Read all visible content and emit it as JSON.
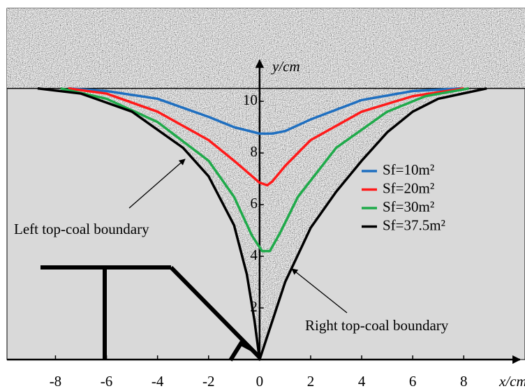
{
  "chart_data": {
    "type": "line",
    "xlabel": "x/cm",
    "ylabel": "y/cm",
    "xlim": [
      -9.9,
      10.4
    ],
    "ylim": [
      0,
      13.6
    ],
    "xticks": [
      -8,
      -6,
      -4,
      -2,
      0,
      2,
      4,
      6,
      8
    ],
    "yticks": [
      2,
      4,
      6,
      8,
      10
    ],
    "legend": "right",
    "annotations": [
      "Left top-coal boundary",
      "Right top-coal boundary"
    ],
    "series": [
      {
        "name": "Sf=10m²",
        "color": "#1f6fc0",
        "x": [
          -7.5,
          -6,
          -4,
          -2,
          -1,
          0,
          0.5,
          1,
          2,
          4,
          6,
          7.9
        ],
        "values": [
          10.5,
          10.4,
          10.1,
          9.4,
          9.0,
          8.75,
          8.75,
          8.85,
          9.3,
          10.05,
          10.4,
          10.5
        ]
      },
      {
        "name": "Sf=20m²",
        "color": "#ff1a1a",
        "x": [
          -7.5,
          -6,
          -4,
          -2,
          -1,
          0,
          0.3,
          0.5,
          1,
          2,
          4,
          6,
          8
        ],
        "values": [
          10.5,
          10.3,
          9.6,
          8.5,
          7.7,
          6.85,
          6.75,
          6.9,
          7.5,
          8.5,
          9.6,
          10.2,
          10.5
        ]
      },
      {
        "name": "Sf=30m²",
        "color": "#1faa4a",
        "x": [
          -7.8,
          -6,
          -4,
          -2,
          -1,
          -0.3,
          0.1,
          0.4,
          0.8,
          1.5,
          3,
          5,
          6.5,
          8.2
        ],
        "values": [
          10.5,
          10.1,
          9.2,
          7.7,
          6.3,
          4.8,
          4.2,
          4.2,
          4.9,
          6.3,
          8.2,
          9.6,
          10.2,
          10.5
        ]
      },
      {
        "name": "Sf=37.5m²",
        "color": "#000000",
        "x": [
          -8.7,
          -7,
          -5,
          -3,
          -2,
          -1,
          -0.5,
          -0.2,
          0,
          0.5,
          1,
          2,
          3,
          4,
          5,
          6,
          7,
          8.9
        ],
        "values": [
          10.5,
          10.3,
          9.6,
          8.2,
          7.1,
          5.2,
          3.3,
          1.5,
          0,
          1.5,
          3.0,
          5.1,
          6.5,
          7.7,
          8.8,
          9.6,
          10.1,
          10.5
        ]
      }
    ]
  }
}
